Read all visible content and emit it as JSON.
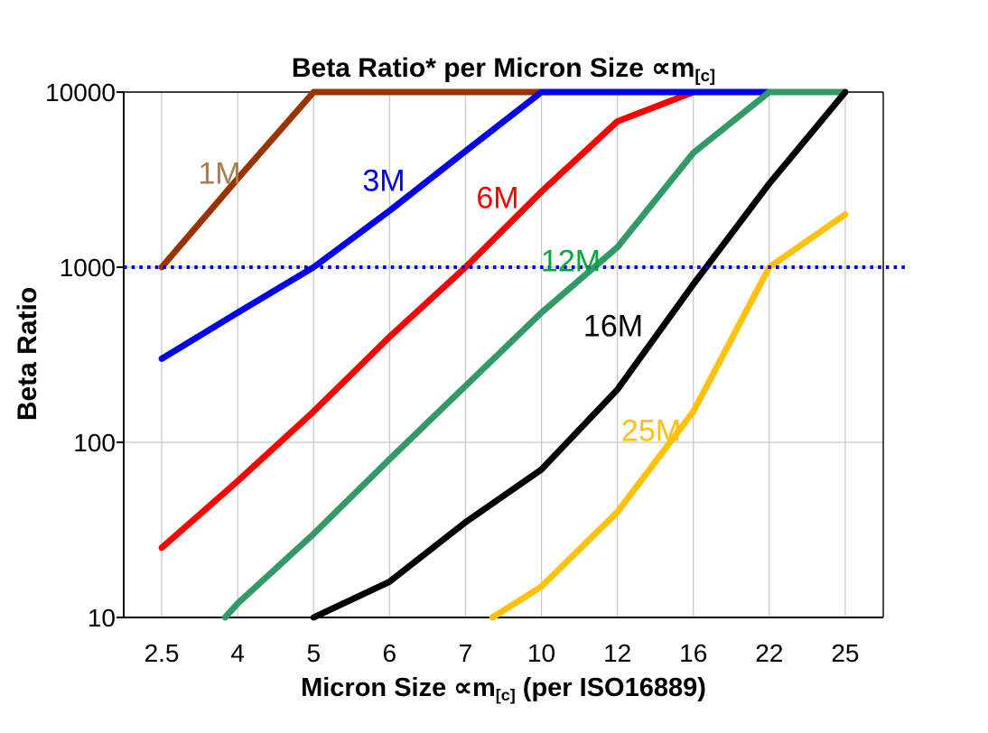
{
  "chart": {
    "title_main": "Beta Ratio* per Micron Size ∝m",
    "title_sub": "[c]",
    "x_axis_label_main": "Micron Size ∝m",
    "x_axis_label_sub": "[c]",
    "x_axis_label_tail": " (per ISO16889)",
    "y_axis_label": "Beta Ratio"
  },
  "chart_data": {
    "type": "line",
    "title": "Beta Ratio* per Micron Size ∝m[c]",
    "xlabel": "Micron Size ∝m[c] (per ISO16889)",
    "ylabel": "Beta Ratio",
    "x_scale": "categorical",
    "y_scale": "log",
    "ylim": [
      10,
      10000
    ],
    "y_ticks": [
      "10",
      "100",
      "1000",
      "10000"
    ],
    "grid": "on",
    "legend": "inline-labels",
    "categories": [
      "2.5",
      "4",
      "5",
      "6",
      "7",
      "10",
      "12",
      "16",
      "22",
      "25"
    ],
    "reference_line": {
      "value": 1000,
      "color": "#0000E0",
      "style": "dotted"
    },
    "series": [
      {
        "name": "1M",
        "color": "#993300",
        "label_color": "#A87C4F",
        "zorder": 1,
        "values": [
          1000,
          3200,
          10000,
          10000,
          10000,
          10000,
          10000,
          10000,
          10000,
          10000
        ]
      },
      {
        "name": "3M",
        "color": "#0000EE",
        "label_color": "#0000EE",
        "zorder": 3,
        "values": [
          300,
          550,
          1000,
          2100,
          4600,
          10000,
          10000,
          10000,
          10000,
          10000
        ]
      },
      {
        "name": "6M",
        "color": "#FF0000",
        "label_color": "#FF0000",
        "zorder": 2,
        "values": [
          25,
          60,
          150,
          400,
          1000,
          2700,
          6800,
          10000,
          10000,
          10000
        ]
      },
      {
        "name": "12M",
        "color": "#339966",
        "label_color": "#00A640",
        "zorder": 4,
        "values": [
          4,
          12,
          30,
          80,
          210,
          550,
          1300,
          4500,
          10000,
          10000
        ]
      },
      {
        "name": "16M",
        "color": "#000000",
        "label_color": "#000000",
        "zorder": 5,
        "values": [
          null,
          null,
          10,
          16,
          35,
          70,
          200,
          800,
          3000,
          10000
        ]
      },
      {
        "name": "25M",
        "color": "#FFC10A",
        "label_color": "#FFC10A",
        "zorder": 6,
        "values": [
          null,
          null,
          null,
          null,
          8,
          15,
          40,
          150,
          1000,
          2000
        ]
      }
    ],
    "axis_colors": {
      "grid": "#C6C6C6",
      "axis": "#000000",
      "text": "#000000"
    }
  }
}
